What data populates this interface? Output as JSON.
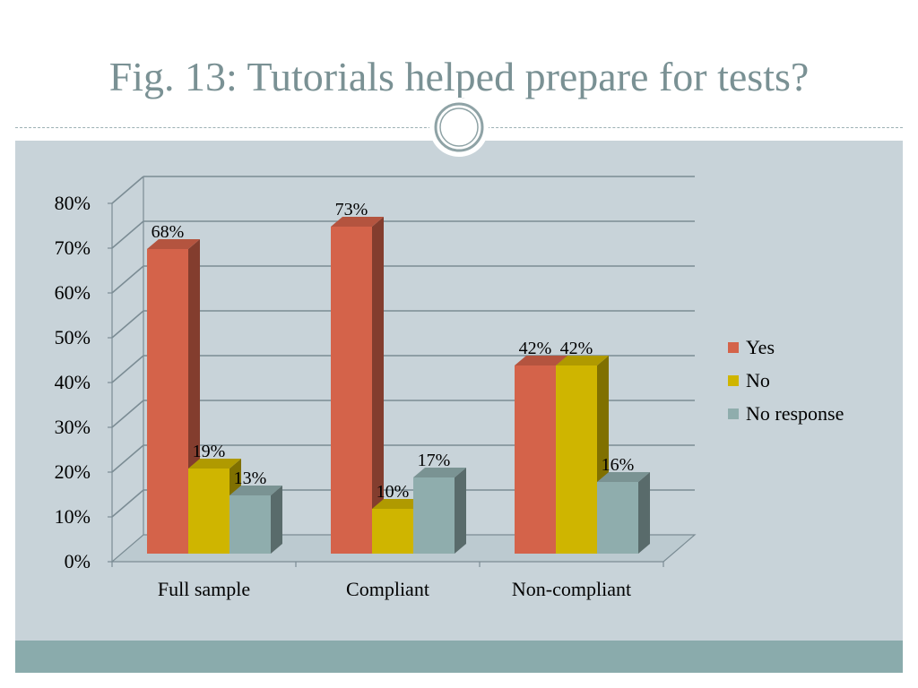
{
  "slide": {
    "title": "Fig. 13: Tutorials helped prepare for tests?"
  },
  "chart_data": {
    "type": "bar",
    "title": "",
    "xlabel": "",
    "ylabel": "",
    "ylim": [
      0,
      0.8
    ],
    "yticks": [
      0,
      0.1,
      0.2,
      0.3,
      0.4,
      0.5,
      0.6,
      0.7,
      0.8
    ],
    "ytick_labels": [
      "0%",
      "10%",
      "20%",
      "30%",
      "40%",
      "50%",
      "60%",
      "70%",
      "80%"
    ],
    "grid": true,
    "style": "3d-clustered",
    "legend_position": "right",
    "categories": [
      "Full sample",
      "Compliant",
      "Non-compliant"
    ],
    "series": [
      {
        "name": "Yes",
        "values": [
          0.68,
          0.73,
          0.42
        ],
        "labels": [
          "68%",
          "73%",
          "42%"
        ],
        "color": "#d4634a"
      },
      {
        "name": "No",
        "values": [
          0.19,
          0.1,
          0.42
        ],
        "labels": [
          "19%",
          "10%",
          "42%"
        ],
        "color": "#cfb500"
      },
      {
        "name": "No response",
        "values": [
          0.13,
          0.17,
          0.16
        ],
        "labels": [
          "13%",
          "17%",
          "16%"
        ],
        "color": "#8fadad"
      }
    ]
  }
}
